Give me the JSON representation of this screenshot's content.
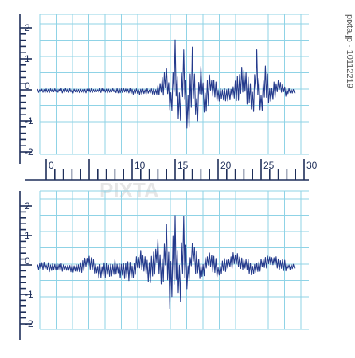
{
  "watermark": {
    "vertical_text": "pixta.jp - 10112219",
    "ghost_text": "PIXTA"
  },
  "colors": {
    "grid": "#8fd3e6",
    "axis": "#1f2f5a",
    "wave": "#243a8c"
  },
  "chart_data": [
    {
      "type": "line",
      "title": "",
      "xlabel": "",
      "ylabel": "",
      "ylim": [
        -2,
        2
      ],
      "xlim": [
        0,
        30
      ],
      "grid": true,
      "y_tick_labels": [
        "2",
        "1",
        "0",
        "-1",
        "-2"
      ],
      "x_tick_labels": [
        "0",
        "10",
        "15",
        "20",
        "25",
        "30"
      ],
      "series": [
        {
          "x": [
            -1,
            4,
            9,
            11,
            13,
            14,
            14.5,
            15,
            15.5,
            16,
            16.5,
            17,
            17.5,
            18,
            18.5,
            19,
            20,
            21,
            22,
            23,
            24,
            24.5,
            25,
            25.5,
            26,
            27,
            28,
            29
          ],
          "y": [
            -0.05,
            -0.05,
            -0.05,
            -0.1,
            -0.1,
            0.6,
            -0.9,
            1.4,
            -1.8,
            1.3,
            -1.6,
            1.4,
            -1.2,
            0.9,
            -1.0,
            0.5,
            -0.3,
            -0.3,
            -0.2,
            0.8,
            -0.9,
            1.2,
            -0.9,
            0.9,
            -0.5,
            0.3,
            -0.1,
            -0.1
          ]
        }
      ]
    },
    {
      "type": "line",
      "title": "",
      "xlabel": "",
      "ylabel": "",
      "ylim": [
        -2,
        2
      ],
      "grid": true,
      "y_tick_labels": [
        "2",
        "1",
        "0",
        "-1",
        "-2"
      ],
      "series": [
        {
          "x": [
            -1,
            2,
            4,
            5,
            6,
            8,
            10,
            11,
            12,
            13,
            13.5,
            14,
            14.5,
            15,
            15.5,
            16,
            16.5,
            17,
            18,
            19,
            20,
            22,
            24,
            26,
            28,
            29
          ],
          "y": [
            -0.1,
            -0.2,
            -0.2,
            0.3,
            -0.4,
            -0.2,
            -0.5,
            0.5,
            -0.6,
            0.8,
            -1.0,
            1.4,
            -1.8,
            1.6,
            -1.4,
            1.9,
            -1.0,
            0.9,
            -0.6,
            0.5,
            -0.4,
            0.4,
            -0.3,
            0.3,
            -0.1,
            -0.1
          ]
        }
      ]
    }
  ]
}
